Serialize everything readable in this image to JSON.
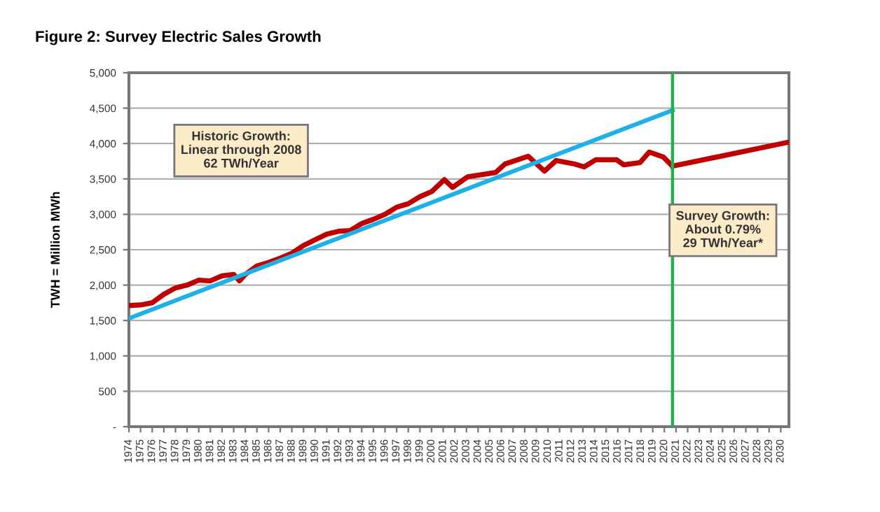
{
  "chart_data": {
    "type": "line",
    "title": "Figure 2: Survey Electric Sales Growth",
    "ylabel": "TWH = Million MWh",
    "annotations": [
      "Historic Growth:\nLinear through 2008\n62 TWh/Year",
      "Survey Growth:\nAbout 0.79%\n29 TWh/Year*"
    ],
    "series": [
      {
        "color": "#c00000",
        "x": [
          1974,
          1975,
          1976,
          1977,
          1978,
          1979,
          1980,
          1981,
          1982,
          1983,
          1983.5,
          1984,
          1985,
          1986,
          1987,
          1988,
          1989,
          1990,
          1991,
          1992,
          1993,
          1994,
          1995,
          1996,
          1997,
          1998,
          1999,
          2000,
          2001.1,
          2001.8,
          2003.1,
          2005.5,
          2006.3,
          2008.3,
          2009.7,
          2010.7,
          2012.3,
          2013.1,
          2014.1,
          2015.9,
          2016.5,
          2017.9,
          2018.7,
          2019.9,
          2020.7
        ],
        "values": [
          1710,
          1720,
          1750,
          1870,
          1960,
          2000,
          2070,
          2060,
          2130,
          2150,
          2060,
          2150,
          2270,
          2320,
          2380,
          2450,
          2560,
          2640,
          2720,
          2760,
          2770,
          2870,
          2930,
          3000,
          3100,
          3150,
          3250,
          3320,
          3490,
          3380,
          3530,
          3590,
          3710,
          3820,
          3610,
          3760,
          3710,
          3670,
          3770,
          3770,
          3700,
          3730,
          3880,
          3810,
          3680
        ]
      },
      {
        "color": "#c00000",
        "x": [
          2020.7,
          2030.7
        ],
        "values": [
          3680,
          4020
        ]
      },
      {
        "color": "#1fb0e8",
        "x": [
          1974,
          2020.7
        ],
        "values": [
          1530,
          4470
        ]
      }
    ],
    "ref_lines": [
      {
        "axis": "x",
        "value": 2020.7,
        "color": "#22b14c"
      }
    ],
    "xlim": [
      1974,
      2030.7
    ],
    "xticks": [
      1974,
      1975,
      1976,
      1977,
      1978,
      1979,
      1980,
      1981,
      1982,
      1983,
      1984,
      1985,
      1986,
      1987,
      1988,
      1989,
      1990,
      1991,
      1992,
      1993,
      1994,
      1995,
      1996,
      1997,
      1998,
      1999,
      2000,
      2001,
      2002,
      2003,
      2004,
      2005,
      2006,
      2007,
      2008,
      2009,
      2010,
      2011,
      2012,
      2013,
      2014,
      2015,
      2016,
      2017,
      2018,
      2019,
      2020,
      2021,
      2022,
      2023,
      2024,
      2025,
      2026,
      2027,
      2028,
      2029,
      2030
    ],
    "ylim": [
      0,
      5000
    ],
    "yticks": [
      {
        "value": 0,
        "label": "-"
      },
      {
        "value": 500,
        "label": "500"
      },
      {
        "value": 1000,
        "label": "1,000"
      },
      {
        "value": 1500,
        "label": "1,500"
      },
      {
        "value": 2000,
        "label": "2,000"
      },
      {
        "value": 2500,
        "label": "2,500"
      },
      {
        "value": 3000,
        "label": "3,000"
      },
      {
        "value": 3500,
        "label": "3,500"
      },
      {
        "value": 4000,
        "label": "4,000"
      },
      {
        "value": 4500,
        "label": "4,500"
      },
      {
        "value": 5000,
        "label": "5,000"
      }
    ],
    "grid": "y",
    "marker": "none",
    "line_style": "solid",
    "legend": false
  }
}
